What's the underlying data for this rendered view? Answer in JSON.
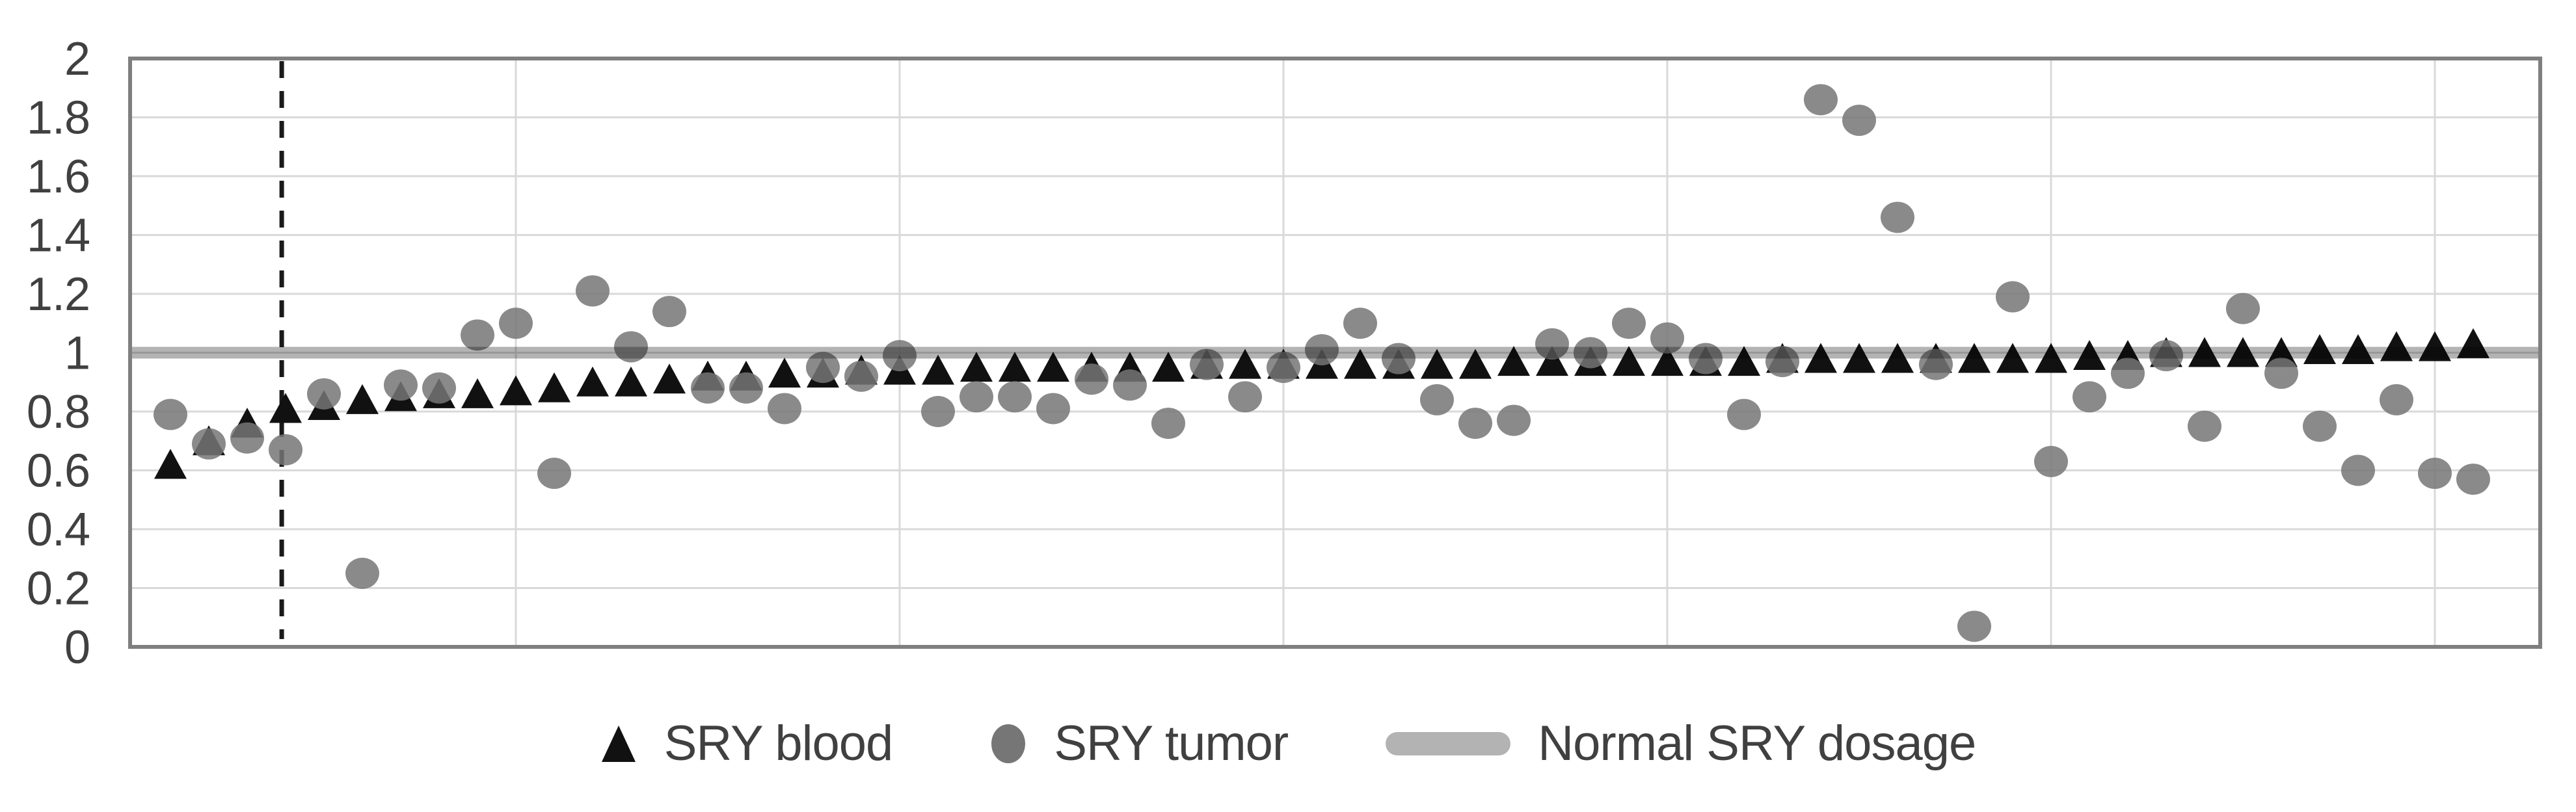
{
  "chart_data": {
    "type": "scatter",
    "x": [
      1,
      2,
      3,
      4,
      5,
      6,
      7,
      8,
      9,
      10,
      11,
      12,
      13,
      14,
      15,
      16,
      17,
      18,
      19,
      20,
      21,
      22,
      23,
      24,
      25,
      26,
      27,
      28,
      29,
      30,
      31,
      32,
      33,
      34,
      35,
      36,
      37,
      38,
      39,
      40,
      41,
      42,
      43,
      44,
      45,
      46,
      47,
      48,
      49,
      50,
      51,
      52,
      53,
      54,
      55,
      56,
      57,
      58,
      59,
      60,
      61
    ],
    "series": [
      {
        "name": "SRY blood",
        "marker": "triangle",
        "color": "#111111",
        "values": [
          0.62,
          0.7,
          0.76,
          0.81,
          0.82,
          0.84,
          0.85,
          0.86,
          0.86,
          0.87,
          0.88,
          0.9,
          0.9,
          0.91,
          0.92,
          0.92,
          0.93,
          0.93,
          0.94,
          0.94,
          0.94,
          0.95,
          0.95,
          0.95,
          0.95,
          0.95,
          0.95,
          0.96,
          0.96,
          0.96,
          0.96,
          0.96,
          0.96,
          0.96,
          0.96,
          0.97,
          0.97,
          0.97,
          0.97,
          0.97,
          0.97,
          0.97,
          0.98,
          0.98,
          0.98,
          0.98,
          0.98,
          0.98,
          0.98,
          0.98,
          0.99,
          0.99,
          1.0,
          1.0,
          1.0,
          1.0,
          1.01,
          1.01,
          1.02,
          1.02,
          1.03
        ]
      },
      {
        "name": "SRY tumor",
        "marker": "circle",
        "color": "#767676",
        "opacity": 0.85,
        "values": [
          0.79,
          0.69,
          0.71,
          0.67,
          0.86,
          0.25,
          0.89,
          0.88,
          1.06,
          1.1,
          0.59,
          1.21,
          1.02,
          1.14,
          0.88,
          0.88,
          0.81,
          0.95,
          0.92,
          0.99,
          0.8,
          0.85,
          0.85,
          0.81,
          0.91,
          0.89,
          0.76,
          0.96,
          0.85,
          0.95,
          1.01,
          1.1,
          0.98,
          0.84,
          0.76,
          0.77,
          1.03,
          1.0,
          1.1,
          1.05,
          0.98,
          0.79,
          0.97,
          1.86,
          1.79,
          1.46,
          0.96,
          0.07,
          1.19,
          0.63,
          0.85,
          0.93,
          0.99,
          0.75,
          1.15,
          0.93,
          0.75,
          0.6,
          0.84,
          0.59,
          0.57
        ]
      },
      {
        "name": "Normal SRY dosage",
        "marker": "hline",
        "color": "#b3b3b3",
        "value": 1.0
      }
    ],
    "ylim": [
      0,
      2
    ],
    "yticks": {
      "values": [
        0,
        0.2,
        0.4,
        0.6,
        0.8,
        1,
        1.2,
        1.4,
        1.6,
        1.8,
        2
      ],
      "labels": [
        "0",
        "0.2",
        "0.4",
        "0.6",
        "0.8",
        "1",
        "1.2",
        "1.4",
        "1.6",
        "1.8",
        "2"
      ]
    },
    "x_gridlines": [
      10,
      20,
      30,
      40,
      50,
      60
    ],
    "dashed_vline_x": 3.9,
    "dashed_color": "#1a1a1a",
    "grid_color": "#d9d9d9",
    "border_color": "#7f7f7f",
    "axis_text_color": "#404040",
    "grid": "on",
    "legend_position": "bottom",
    "title": "",
    "xlabel": "",
    "ylabel": ""
  },
  "legend": {
    "items": [
      {
        "label": "SRY blood",
        "marker": "triangle"
      },
      {
        "label": "SRY tumor",
        "marker": "circle"
      },
      {
        "label": "Normal SRY dosage",
        "marker": "line"
      }
    ]
  }
}
